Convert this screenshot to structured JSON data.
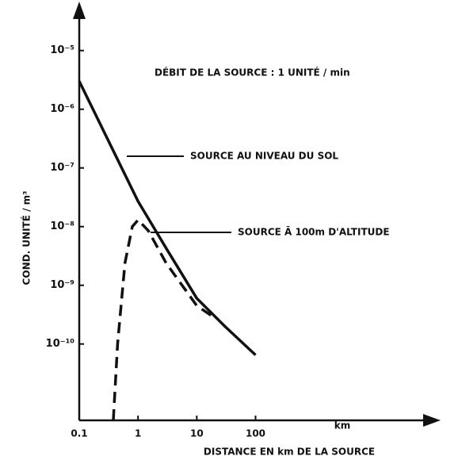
{
  "chart_data": {
    "type": "line",
    "title": "DÉBIT DE LA SOURCE : 1 UNITÉ / min",
    "x_label": "DISTANCE EN km DE LA SOURCE",
    "x_unit": "km",
    "y_label": "COND. UNITÉ / m³",
    "log_x": true,
    "log_y": true,
    "xlim": [
      0.1,
      100000
    ],
    "ylim": [
      5e-12,
      5e-05
    ],
    "xticks": [
      0.1,
      1,
      10,
      100
    ],
    "yticks": [
      {
        "value": 1e-05,
        "label": "10⁻⁵"
      },
      {
        "value": 1e-06,
        "label": "10⁻⁶"
      },
      {
        "value": 1e-07,
        "label": "10⁻⁷"
      },
      {
        "value": 1e-08,
        "label": "10⁻⁸"
      },
      {
        "value": 1e-09,
        "label": "10⁻⁹"
      },
      {
        "value": 1e-10,
        "label": "10⁻¹⁰"
      }
    ],
    "series": [
      {
        "name": "SOURCE AU NIVEAU DU SOL",
        "color": "#111",
        "dash": false,
        "x": [
          0.1,
          1,
          3,
          10,
          30,
          100
        ],
        "values": [
          3e-06,
          2.7e-08,
          4.3e-09,
          6e-10,
          2e-10,
          6.5e-11
        ]
      },
      {
        "name": "SOURCE Ā 100m D'ALTITUDE",
        "color": "#111",
        "dash": true,
        "x": [
          0.38,
          0.45,
          0.6,
          0.8,
          1,
          1.5,
          3,
          10,
          20
        ],
        "values": [
          5e-12,
          1e-10,
          2.4e-09,
          1e-08,
          1.3e-08,
          8.5e-09,
          2.4e-09,
          4.5e-10,
          2.8e-10
        ]
      }
    ]
  }
}
